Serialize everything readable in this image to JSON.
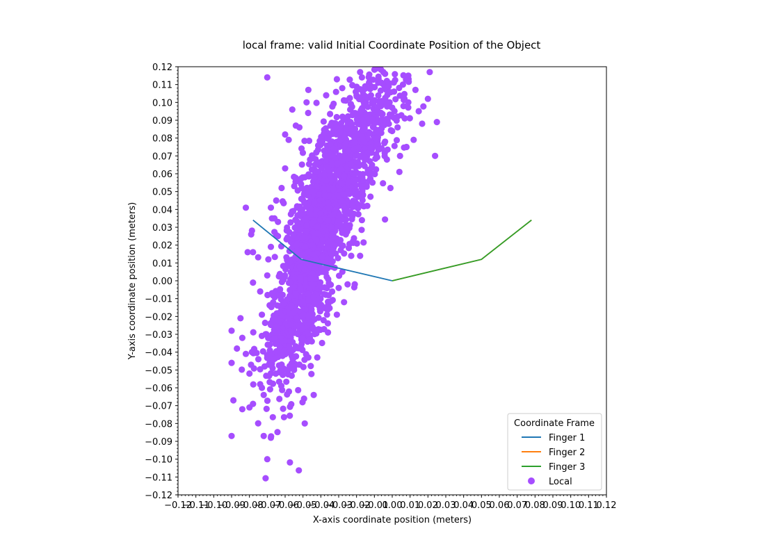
{
  "chart_data": {
    "type": "scatter",
    "title": "local frame: valid Initial Coordinate Position of the Object",
    "xlabel": "X-axis coordinate position (meters)",
    "ylabel": "Y-axis coordinate position (meters)",
    "xlim": [
      -0.12,
      0.12
    ],
    "ylim": [
      -0.12,
      0.12
    ],
    "xticks": [
      "−0.12",
      "−0.11",
      "−0.10",
      "−0.09",
      "−0.08",
      "−0.07",
      "−0.06",
      "−0.05",
      "−0.04",
      "−0.03",
      "−0.02",
      "−0.01",
      "0.00",
      "0.01",
      "0.02",
      "0.03",
      "0.04",
      "0.05",
      "0.06",
      "0.07",
      "0.08",
      "0.09",
      "0.10",
      "0.11",
      "0.12"
    ],
    "yticks": [
      "−0.12",
      "−0.11",
      "−0.10",
      "−0.09",
      "−0.08",
      "−0.07",
      "−0.06",
      "−0.05",
      "−0.04",
      "−0.03",
      "−0.02",
      "−0.01",
      "0.00",
      "0.01",
      "0.02",
      "0.03",
      "0.04",
      "0.05",
      "0.06",
      "0.07",
      "0.08",
      "0.09",
      "0.10",
      "0.11",
      "0.12"
    ],
    "grid": false,
    "legend": {
      "title": "Coordinate Frame",
      "placement": "lower-right"
    },
    "lines": [
      {
        "name": "Finger 1",
        "color": "#1f77b4",
        "x": [
          -0.078,
          -0.051,
          0.0
        ],
        "y": [
          0.034,
          0.012,
          0.0
        ]
      },
      {
        "name": "Finger 2",
        "color": "#ff7f0e",
        "x": [
          0.0,
          0.05,
          0.078
        ],
        "y": [
          0.0,
          0.012,
          0.034
        ]
      },
      {
        "name": "Finger 3",
        "color": "#2ca02c",
        "x": [
          0.0,
          0.05,
          0.078
        ],
        "y": [
          0.0,
          0.012,
          0.034
        ]
      }
    ],
    "scatter": {
      "name": "Local",
      "color": "#a64dff",
      "points": [
        [
          -0.07,
          0.114
        ],
        [
          0.009,
          0.115
        ],
        [
          0.021,
          0.117
        ],
        [
          0.013,
          0.107
        ],
        [
          0.02,
          0.102
        ],
        [
          0.025,
          0.089
        ],
        [
          0.024,
          0.07
        ],
        [
          0.008,
          0.075
        ],
        [
          0.012,
          0.079
        ],
        [
          0.004,
          0.061
        ],
        [
          -0.001,
          0.052
        ],
        [
          -0.068,
          0.041
        ],
        [
          -0.082,
          0.041
        ],
        [
          -0.081,
          0.016
        ],
        [
          -0.078,
          0.016
        ],
        [
          -0.079,
          0.026
        ],
        [
          -0.078,
          -0.001
        ],
        [
          -0.085,
          -0.021
        ],
        [
          -0.084,
          -0.032
        ],
        [
          -0.087,
          -0.038
        ],
        [
          -0.082,
          -0.041
        ],
        [
          -0.09,
          -0.046
        ],
        [
          -0.08,
          -0.052
        ],
        [
          -0.09,
          -0.028
        ],
        [
          -0.089,
          -0.067
        ],
        [
          -0.074,
          -0.058
        ],
        [
          -0.078,
          -0.069
        ],
        [
          -0.073,
          -0.06
        ],
        [
          -0.084,
          -0.072
        ],
        [
          -0.08,
          -0.071
        ],
        [
          -0.072,
          -0.064
        ],
        [
          -0.09,
          -0.087
        ],
        [
          -0.068,
          -0.088
        ],
        [
          -0.072,
          -0.087
        ],
        [
          -0.07,
          -0.1
        ],
        [
          -0.049,
          -0.08
        ],
        [
          -0.044,
          -0.064
        ],
        [
          -0.042,
          -0.043
        ],
        [
          -0.047,
          -0.043
        ],
        [
          -0.052,
          -0.047
        ],
        [
          -0.055,
          -0.05
        ],
        [
          -0.063,
          -0.037
        ],
        [
          -0.062,
          -0.047
        ],
        [
          -0.067,
          -0.049
        ],
        [
          -0.036,
          -0.029
        ],
        [
          -0.031,
          -0.019
        ],
        [
          -0.027,
          -0.012
        ],
        [
          -0.03,
          -0.004
        ],
        [
          -0.025,
          -0.002
        ],
        [
          -0.021,
          -0.002
        ],
        [
          -0.048,
          0.1
        ],
        [
          -0.047,
          0.107
        ],
        [
          -0.037,
          0.104
        ],
        [
          -0.031,
          0.113
        ],
        [
          -0.028,
          0.108
        ],
        [
          -0.026,
          0.101
        ],
        [
          -0.02,
          0.104
        ],
        [
          -0.017,
          0.114
        ],
        [
          -0.013,
          0.111
        ],
        [
          -0.018,
          0.117
        ],
        [
          -0.009,
          0.119
        ],
        [
          -0.005,
          0.117
        ],
        [
          -0.003,
          0.112
        ],
        [
          -0.002,
          0.109
        ],
        [
          0.001,
          0.106
        ],
        [
          0.006,
          0.11
        ],
        [
          0.009,
          0.1
        ],
        [
          0.007,
          0.091
        ],
        [
          -0.004,
          0.116
        ],
        [
          -0.006,
          0.111
        ],
        [
          0.0,
          0.097
        ],
        [
          0.003,
          0.086
        ],
        [
          -0.004,
          0.078
        ],
        [
          -0.003,
          0.068
        ],
        [
          -0.01,
          0.06
        ],
        [
          -0.017,
          0.034
        ],
        [
          -0.014,
          0.042
        ],
        [
          -0.026,
          0.026
        ],
        [
          -0.022,
          0.022
        ],
        [
          -0.023,
          0.014
        ],
        [
          -0.018,
          0.014
        ],
        [
          -0.06,
          0.063
        ],
        [
          -0.054,
          0.087
        ],
        [
          -0.056,
          0.096
        ],
        [
          -0.058,
          0.079
        ],
        [
          -0.06,
          0.082
        ],
        [
          -0.052,
          0.086
        ],
        [
          -0.062,
          0.052
        ],
        [
          -0.065,
          0.045
        ],
        [
          -0.066,
          0.035
        ],
        [
          -0.064,
          0.033
        ],
        [
          -0.064,
          0.025
        ],
        [
          -0.068,
          0.019
        ],
        [
          -0.07,
          0.003
        ],
        [
          -0.074,
          -0.006
        ],
        [
          -0.073,
          -0.019
        ],
        [
          -0.071,
          -0.03
        ],
        [
          -0.075,
          -0.044
        ]
      ],
      "dense_regions": [
        {
          "cx": -0.046,
          "cy": 0.005,
          "sx": 0.011,
          "sy": 0.034,
          "rho": 0.7,
          "n": 600
        },
        {
          "cx": -0.03,
          "cy": 0.06,
          "sx": 0.012,
          "sy": 0.022,
          "rho": 0.6,
          "n": 550
        },
        {
          "cx": -0.058,
          "cy": -0.025,
          "sx": 0.008,
          "sy": 0.012,
          "rho": 0.5,
          "n": 250
        },
        {
          "cx": -0.014,
          "cy": 0.09,
          "sx": 0.011,
          "sy": 0.013,
          "rho": 0.3,
          "n": 220
        },
        {
          "cx": -0.038,
          "cy": 0.035,
          "sx": 0.012,
          "sy": 0.02,
          "rho": 0.6,
          "n": 300
        }
      ]
    }
  }
}
